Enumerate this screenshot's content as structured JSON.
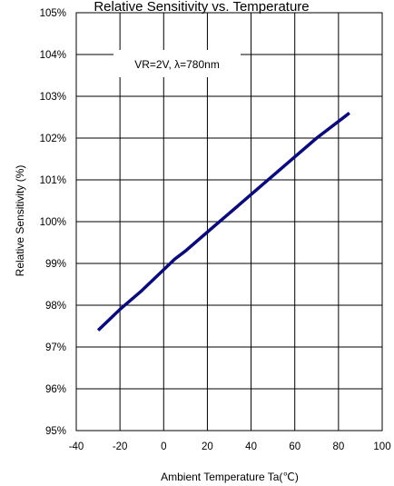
{
  "chart_data": {
    "type": "line",
    "title": "Relative Sensitivity vs. Temperature",
    "xlabel": "Ambient Temperature Ta(℃)",
    "ylabel": "Relative Sensitivity (%)",
    "annotation": "VR=2V, λ=780nm",
    "xlim": [
      -40,
      100
    ],
    "ylim": [
      95,
      105
    ],
    "x_ticks": [
      "-40",
      "-20",
      "0",
      "20",
      "40",
      "60",
      "80",
      "100"
    ],
    "y_ticks": [
      "95%",
      "96%",
      "97%",
      "98%",
      "99%",
      "100%",
      "101%",
      "102%",
      "103%",
      "104%",
      "105%"
    ],
    "grid": true,
    "series_color": "#0a0a78",
    "series": [
      {
        "x": [
          -30,
          -20,
          -10,
          0,
          5,
          10,
          20,
          30,
          40,
          50,
          60,
          70,
          85
        ],
        "values": [
          97.4,
          97.9,
          98.35,
          98.85,
          99.1,
          99.3,
          99.75,
          100.2,
          100.65,
          101.1,
          101.55,
          102.0,
          102.6
        ]
      }
    ]
  }
}
